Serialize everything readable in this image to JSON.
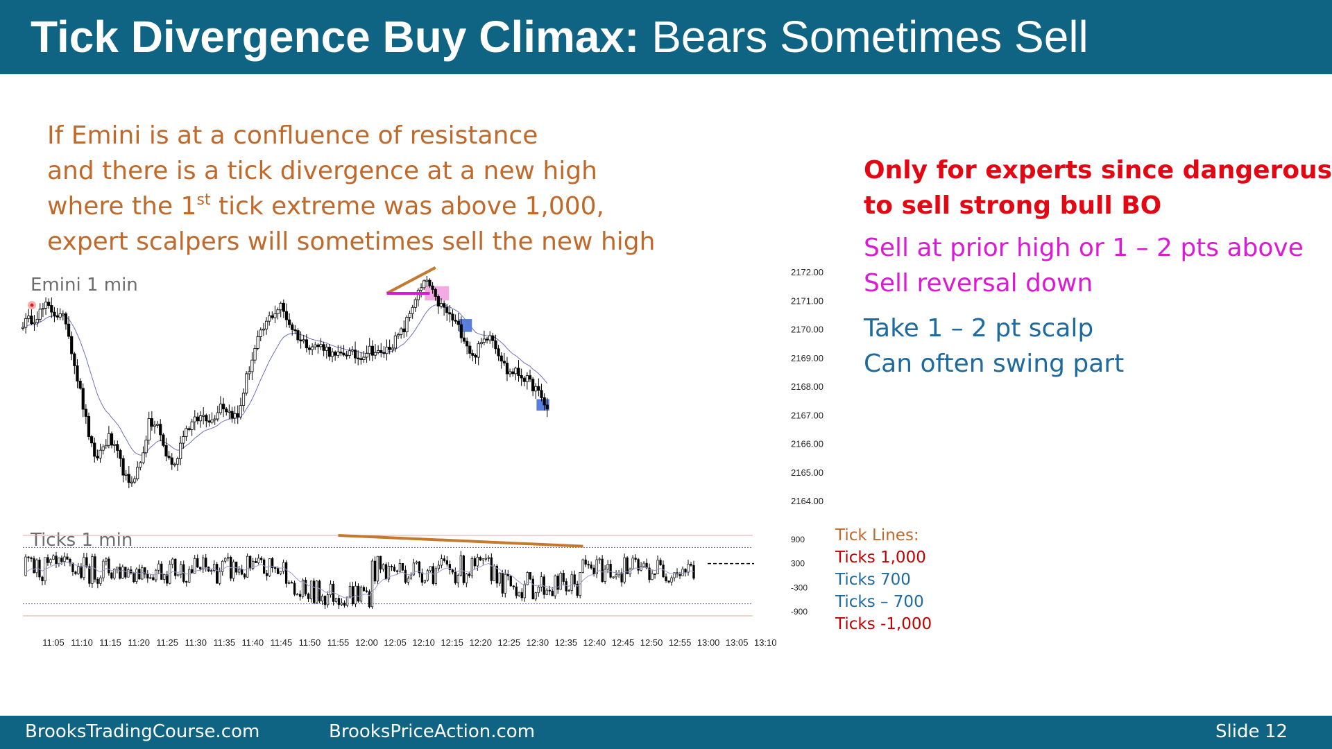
{
  "slide": {
    "title_bold": "Tick Divergence Buy Climax:",
    "title_rest": " Bears Sometimes Sell",
    "intro": {
      "line1": "If Emini is at a confluence of resistance",
      "line2": "and there is a tick divergence at a new high",
      "line3_a": "where the 1",
      "line3_sup": "st",
      "line3_b": " tick extreme was above 1,000,",
      "line4": "expert scalpers will sometimes sell the new high"
    },
    "warning": {
      "line1": "Only for experts since dangerous",
      "line2": "to sell strong bull BO"
    },
    "sell": {
      "line1": "Sell at prior high or 1 – 2 pts above",
      "line2": "Sell reversal down"
    },
    "take": {
      "line1": "Take 1 – 2 pt scalp",
      "line2": "Can often swing part"
    },
    "tick_lines": {
      "heading": "Tick Lines:",
      "items": [
        {
          "label": "Ticks 1,000",
          "color": "#c00000"
        },
        {
          "label": "Ticks 700",
          "color": "#1c6aa0"
        },
        {
          "label": "Ticks – 700",
          "color": "#1c6aa0"
        },
        {
          "label": "Ticks -1,000",
          "color": "#c00000"
        }
      ]
    },
    "footer": {
      "left": "BrooksTradingCourse.com",
      "center": "BrooksPriceAction.com",
      "slide_label": "Slide",
      "slide_number": "12"
    },
    "colors": {
      "header": "#0f6383",
      "trendline": "#c47a2e",
      "magenta": "#d61ad6",
      "blue_highlight": "#2e5fd4",
      "pink_highlight": "#f08fd8"
    }
  },
  "chart_data": [
    {
      "type": "candlestick",
      "label": "Emini 1 min",
      "y_ticks": [
        "2172.00",
        "2171.00",
        "2170.00",
        "2169.00",
        "2168.00",
        "2167.00",
        "2166.00",
        "2165.00",
        "2164.00"
      ],
      "ylim": [
        2163.5,
        2172.25
      ],
      "x_start": "11:00",
      "x_end": "13:12",
      "close_anchors": [
        [
          0,
          2170.2
        ],
        [
          4,
          2170.4
        ],
        [
          8,
          2170.8
        ],
        [
          12,
          2170.5
        ],
        [
          15,
          2170.3
        ],
        [
          18,
          2168.8
        ],
        [
          22,
          2166.8
        ],
        [
          25,
          2165.4
        ],
        [
          30,
          2166.2
        ],
        [
          33,
          2165.6
        ],
        [
          37,
          2164.5
        ],
        [
          41,
          2165.3
        ],
        [
          44,
          2166.7
        ],
        [
          47,
          2166.6
        ],
        [
          50,
          2165.6
        ],
        [
          53,
          2165.2
        ],
        [
          56,
          2166.4
        ],
        [
          59,
          2166.7
        ],
        [
          63,
          2167.0
        ],
        [
          66,
          2166.8
        ],
        [
          69,
          2167.4
        ],
        [
          72,
          2167.1
        ],
        [
          75,
          2166.9
        ],
        [
          78,
          2168.3
        ],
        [
          82,
          2169.6
        ],
        [
          86,
          2170.4
        ],
        [
          90,
          2170.8
        ],
        [
          93,
          2170.2
        ],
        [
          97,
          2169.6
        ],
        [
          101,
          2169.4
        ],
        [
          105,
          2169.4
        ],
        [
          109,
          2169.0
        ],
        [
          113,
          2169.2
        ],
        [
          117,
          2169.0
        ],
        [
          121,
          2169.3
        ],
        [
          125,
          2169.1
        ],
        [
          129,
          2169.5
        ],
        [
          133,
          2170.0
        ],
        [
          137,
          2171.1
        ],
        [
          141,
          2171.7
        ],
        [
          144,
          2171.0
        ],
        [
          147,
          2170.7
        ],
        [
          151,
          2170.2
        ],
        [
          154,
          2169.7
        ],
        [
          157,
          2169.0
        ],
        [
          160,
          2169.5
        ],
        [
          163,
          2169.9
        ],
        [
          166,
          2169.2
        ],
        [
          169,
          2168.5
        ],
        [
          172,
          2168.5
        ],
        [
          175,
          2168.3
        ],
        [
          179,
          2167.9
        ],
        [
          183,
          2167.2
        ]
      ],
      "annotations": [
        {
          "kind": "trendline",
          "from": [
            127,
            2171.25
          ],
          "to": [
            144,
            2172.15
          ]
        },
        {
          "kind": "horizontal",
          "from": [
            127,
            2171.25
          ],
          "to": [
            142,
            2171.25
          ]
        },
        {
          "kind": "highlight",
          "color": "pink",
          "from": [
            141,
            2171.5
          ],
          "to": [
            148,
            2171.0
          ]
        },
        {
          "kind": "highlight",
          "color": "blue",
          "from": [
            153,
            2170.35
          ],
          "to": [
            156,
            2169.9
          ]
        },
        {
          "kind": "highlight",
          "color": "blue",
          "from": [
            180,
            2167.55
          ],
          "to": [
            183,
            2167.15
          ]
        }
      ]
    },
    {
      "type": "candlestick",
      "label": "Ticks 1 min",
      "y_ticks": [
        "900",
        "300",
        "-300",
        "-900"
      ],
      "reference_lines": [
        1000,
        700,
        -700,
        -1000
      ],
      "x_ticks": [
        "11:05",
        "11:10",
        "11:15",
        "11:20",
        "11:25",
        "11:30",
        "11:35",
        "11:40",
        "11:45",
        "11:50",
        "11:55",
        "12:00",
        "12:05",
        "12:10",
        "12:15",
        "12:20",
        "12:25",
        "12:30",
        "12:35",
        "12:40",
        "12:45",
        "12:50",
        "12:55",
        "13:00",
        "13:05",
        "13:10"
      ],
      "divergence_line": {
        "from": [
          "11:55",
          1000
        ],
        "to": [
          "12:38",
          730
        ]
      }
    }
  ]
}
